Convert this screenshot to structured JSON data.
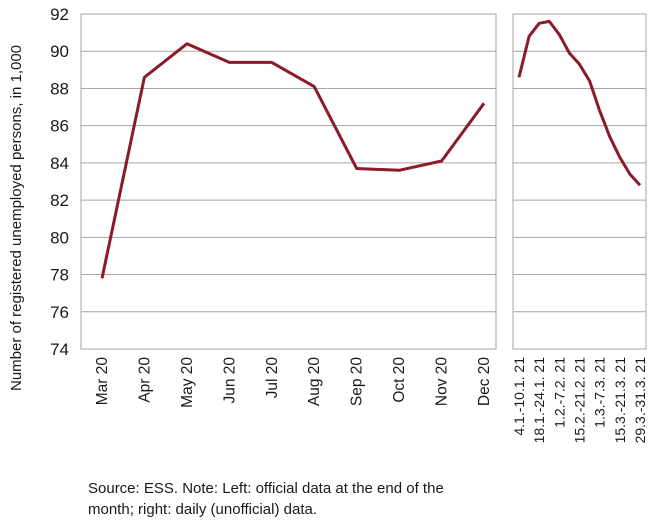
{
  "chart_data": [
    {
      "type": "line",
      "ylabel": "Number of registered unemployed persons, in 1,000",
      "ylim": [
        74,
        92
      ],
      "yticks": [
        74,
        76,
        78,
        80,
        82,
        84,
        86,
        88,
        90,
        92
      ],
      "grid": true,
      "categories": [
        "Mar 20",
        "Apr 20",
        "May 20",
        "Jun 20",
        "Jul 20",
        "Aug 20",
        "Sep 20",
        "Oct 20",
        "Nov 20",
        "Dec 20"
      ],
      "series": [
        {
          "values": [
            77.8,
            88.6,
            90.4,
            89.4,
            89.4,
            88.1,
            83.7,
            83.6,
            84.1,
            87.2
          ]
        }
      ],
      "color": "#8b1a2b"
    },
    {
      "type": "line",
      "ylim": [
        74,
        92
      ],
      "grid": true,
      "categories": [
        "4.1.-10.1. 21",
        "",
        "18.1.-24.1. 21",
        "",
        "1.2.-7.2. 21",
        "",
        "15.2.-21.2. 21",
        "",
        "1.3.-7.3. 21",
        "",
        "15.3.-21.3. 21",
        "",
        "29.3.-31.3. 21"
      ],
      "series": [
        {
          "values": [
            88.6,
            90.8,
            91.5,
            91.6,
            90.9,
            89.9,
            89.3,
            88.4,
            86.8,
            85.4,
            84.3,
            83.4,
            82.8
          ]
        }
      ],
      "color": "#8b1a2b"
    }
  ],
  "footnote": "Source: ESS. Note: Left: official data at the end of the month; right: daily (unofficial) data."
}
